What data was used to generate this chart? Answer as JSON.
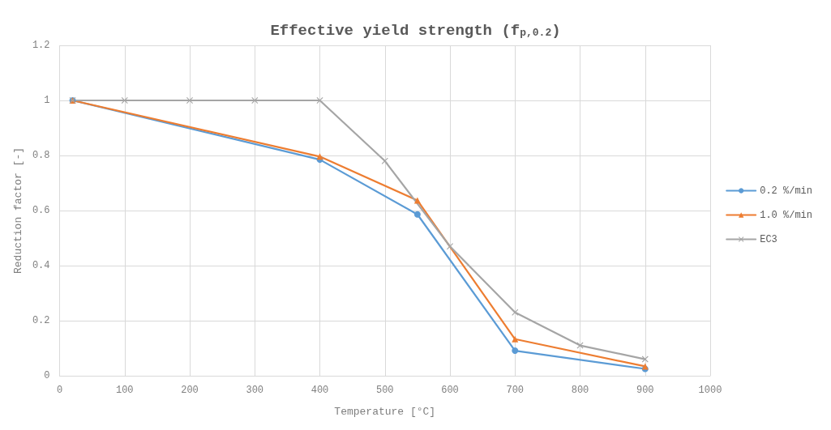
{
  "chart_data": {
    "type": "line",
    "title": "Effective yield strength (f$_{p,0.2}$)",
    "xlabel": "Temperature [°C]",
    "ylabel": "Reduction factor [-]",
    "xlim": [
      0,
      1000
    ],
    "xticks": [
      0,
      100,
      200,
      300,
      400,
      500,
      600,
      700,
      800,
      900,
      1000
    ],
    "ylim": [
      0,
      1.2
    ],
    "yticks": [
      0,
      0.2,
      0.4,
      0.6,
      0.8,
      1,
      1.2
    ],
    "grid": true,
    "legend": "right",
    "line_style": "solid",
    "series": [
      {
        "name": "0.2 %/min",
        "color": "#5b9bd5",
        "marker": "circle",
        "x": [
          20,
          400,
          550,
          700,
          900
        ],
        "values": [
          1.0,
          0.785,
          0.586,
          0.091,
          0.025
        ]
      },
      {
        "name": "1.0 %/min",
        "color": "#ed7d31",
        "marker": "triangle",
        "x": [
          20,
          400,
          550,
          700,
          900
        ],
        "values": [
          1.0,
          0.796,
          0.637,
          0.133,
          0.034
        ]
      },
      {
        "name": "EC3",
        "color": "#a5a5a5",
        "marker": "cross",
        "x": [
          20,
          100,
          200,
          300,
          400,
          500,
          600,
          700,
          800,
          900
        ],
        "values": [
          1.0,
          1.0,
          1.0,
          1.0,
          1.0,
          0.78,
          0.47,
          0.23,
          0.11,
          0.06
        ]
      }
    ]
  }
}
